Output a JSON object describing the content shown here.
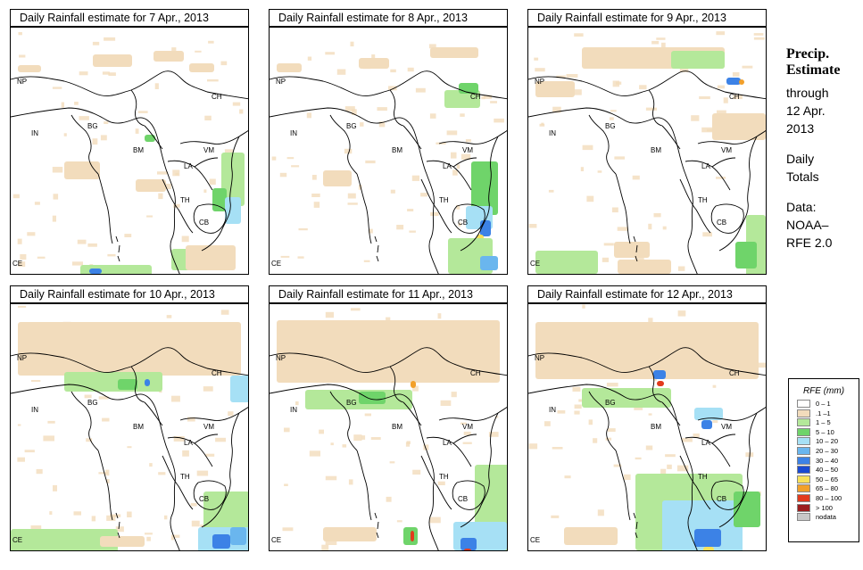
{
  "panels": [
    {
      "title": "Daily Rainfall estimate for  7 Apr., 2013"
    },
    {
      "title": "Daily Rainfall estimate for  8 Apr., 2013"
    },
    {
      "title": "Daily Rainfall estimate for  9 Apr., 2013"
    },
    {
      "title": "Daily Rainfall estimate for  10 Apr., 2013"
    },
    {
      "title": "Daily Rainfall estimate for  11 Apr., 2013"
    },
    {
      "title": "Daily Rainfall estimate for  12 Apr., 2013"
    }
  ],
  "country_labels": {
    "np": "NP",
    "ch": "CH",
    "in": "IN",
    "bg": "BG",
    "bm": "BM",
    "vm": "VM",
    "la": "LA",
    "th": "TH",
    "cb": "CB",
    "ce": "CE"
  },
  "sidebar": {
    "title_line1": "Precip.",
    "title_line2": "Estimate",
    "line1": "through",
    "line2": "12 Apr.",
    "line3": "2013",
    "line4": "Daily",
    "line5": "Totals",
    "line6": "Data:",
    "line7": "NOAA–",
    "line8": "RFE 2.0"
  },
  "legend": {
    "title": "RFE (mm)",
    "items": [
      {
        "label": "0 – 1",
        "color": "#ffffff"
      },
      {
        "label": ".1 –1",
        "color": "#f2dcbc"
      },
      {
        "label": "1 – 5",
        "color": "#b4e89a"
      },
      {
        "label": "5 – 10",
        "color": "#6fd46a"
      },
      {
        "label": "10 – 20",
        "color": "#a6e0f5"
      },
      {
        "label": "20 – 30",
        "color": "#6ab6ee"
      },
      {
        "label": "30 – 40",
        "color": "#3c82e6"
      },
      {
        "label": "40 – 50",
        "color": "#1a4ad2"
      },
      {
        "label": "50 – 65",
        "color": "#f7e15a"
      },
      {
        "label": "65 – 80",
        "color": "#f2a02a"
      },
      {
        "label": "80 – 100",
        "color": "#e23a1c"
      },
      {
        "label": "> 100",
        "color": "#9c1e1e"
      },
      {
        "label": "nodata",
        "color": "#c8c8c8"
      }
    ]
  }
}
